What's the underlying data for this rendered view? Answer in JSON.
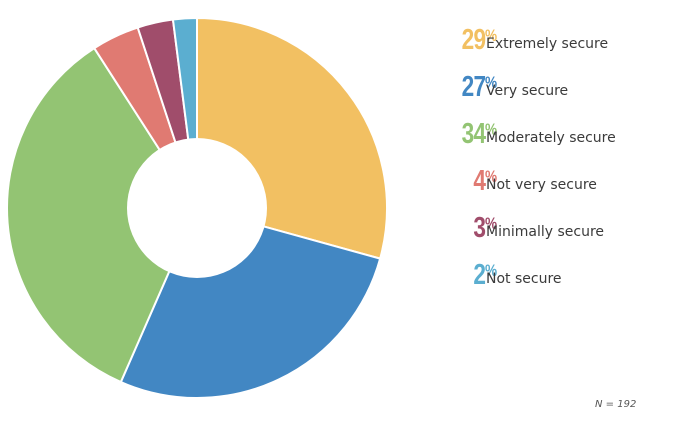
{
  "chart_data": {
    "type": "pie",
    "donut": true,
    "categories": [
      "Extremely secure",
      "Very secure",
      "Moderately secure",
      "Not very secure",
      "Minimally secure",
      "Not secure"
    ],
    "values": [
      29,
      27,
      34,
      4,
      3,
      2
    ],
    "colors": [
      "#F2C062",
      "#4287C3",
      "#93C473",
      "#E07A72",
      "#A04D6B",
      "#5BAED0"
    ],
    "legend_placement": "right",
    "footnote": "N = 192"
  },
  "legend": [
    {
      "pct": "29",
      "label": "Extremely secure"
    },
    {
      "pct": "27",
      "label": "Very secure"
    },
    {
      "pct": "34",
      "label": "Moderately secure"
    },
    {
      "pct": "4",
      "label": "Not very secure"
    },
    {
      "pct": "3",
      "label": "Minimally secure"
    },
    {
      "pct": "2",
      "label": "Not secure"
    }
  ],
  "pct_symbol": "%",
  "footnote": "N = 192"
}
